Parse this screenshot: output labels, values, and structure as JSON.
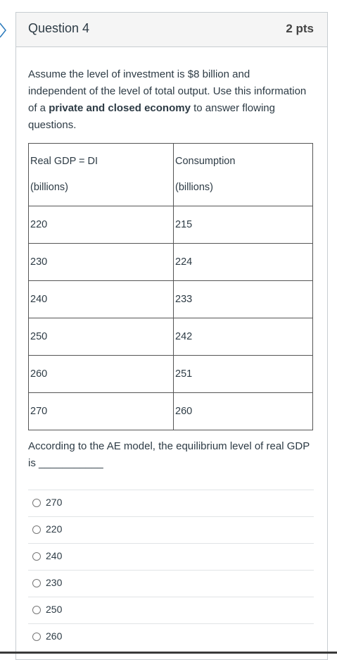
{
  "header": {
    "title": "Question 4",
    "points": "2 pts"
  },
  "question": {
    "intro": "Assume the level of investment is $8 billion and independent of the level of total output. Use this information of a ",
    "bold": "private and closed economy",
    "outro": " to answer flowing questions."
  },
  "table": {
    "headers": [
      [
        "Real GDP = DI",
        "(billions)"
      ],
      [
        "Consumption",
        "(billions)"
      ]
    ],
    "rows": [
      [
        220,
        215
      ],
      [
        230,
        224
      ],
      [
        240,
        233
      ],
      [
        250,
        242
      ],
      [
        260,
        251
      ],
      [
        270,
        260
      ]
    ]
  },
  "prompt": {
    "text": "According to the AE model, the equilibrium level of real GDP is ",
    "blank": "___________"
  },
  "options": [
    270,
    220,
    240,
    230,
    250,
    260
  ]
}
